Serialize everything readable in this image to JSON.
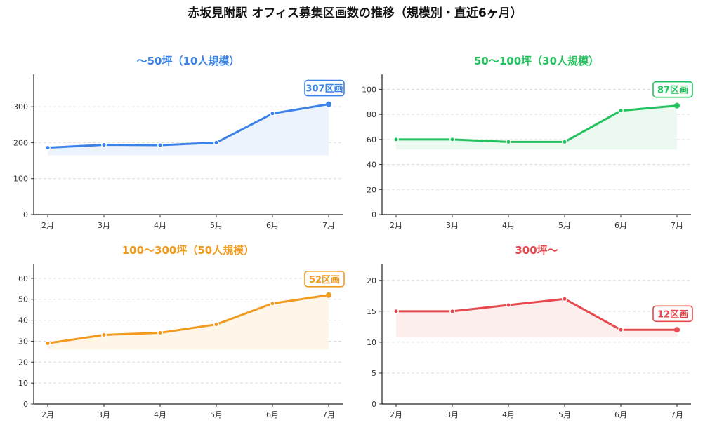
{
  "title": "赤坂見附駅 オフィス募集区画数の推移（規模別・直近6ヶ月）",
  "chart_data": [
    {
      "type": "line",
      "title": "〜50坪（10人規模）",
      "color": "#3b82e6",
      "fill": "#eaf2fd",
      "categories": [
        "2月",
        "3月",
        "4月",
        "5月",
        "6月",
        "7月"
      ],
      "values": [
        186,
        194,
        193,
        200,
        281,
        307
      ],
      "ylim": [
        0,
        390
      ],
      "yticks": [
        0,
        100,
        200,
        300
      ],
      "fill_base": 165,
      "annotation": "307区画"
    },
    {
      "type": "line",
      "title": "50〜100坪（30人規模）",
      "color": "#22c35e",
      "fill": "#e9f8ee",
      "categories": [
        "2月",
        "3月",
        "4月",
        "5月",
        "6月",
        "7月"
      ],
      "values": [
        60,
        60,
        58,
        58,
        83,
        87
      ],
      "ylim": [
        0,
        112
      ],
      "yticks": [
        0,
        20,
        40,
        60,
        80,
        100
      ],
      "fill_base": 52,
      "annotation": "87区画"
    },
    {
      "type": "line",
      "title": "100〜300坪（50人規模）",
      "color": "#f09a1e",
      "fill": "#fef5e7",
      "categories": [
        "2月",
        "3月",
        "4月",
        "5月",
        "6月",
        "7月"
      ],
      "values": [
        29,
        33,
        34,
        38,
        48,
        52
      ],
      "ylim": [
        0,
        67
      ],
      "yticks": [
        0,
        10,
        20,
        30,
        40,
        50,
        60
      ],
      "fill_base": 26,
      "annotation": "52区画"
    },
    {
      "type": "line",
      "title": "300坪〜",
      "color": "#e5484d",
      "fill": "#fdecec",
      "categories": [
        "2月",
        "3月",
        "4月",
        "5月",
        "6月",
        "7月"
      ],
      "values": [
        15,
        15,
        16,
        17,
        12,
        12
      ],
      "ylim": [
        0,
        22.7
      ],
      "yticks": [
        0,
        5,
        10,
        15,
        20
      ],
      "fill_base": 10.8,
      "annotation": "12区画"
    }
  ]
}
